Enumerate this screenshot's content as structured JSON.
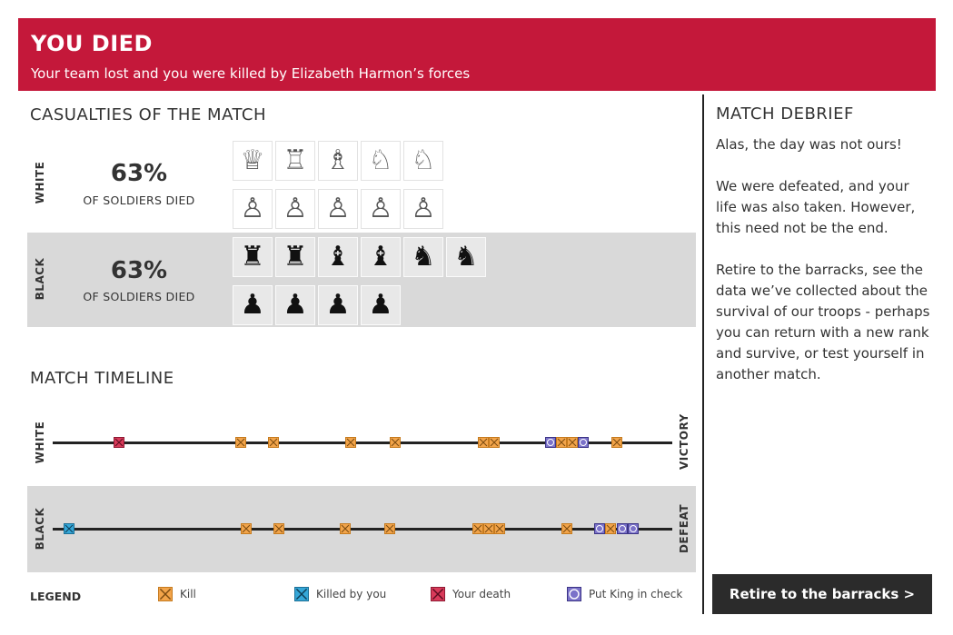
{
  "banner": {
    "title": "YOU DIED",
    "subtitle": "Your team lost and you were killed by Elizabeth Harmon’s forces",
    "color": "#c4183a"
  },
  "casualties": {
    "title": "CASUALTIES OF THE MATCH",
    "white": {
      "label": "WHITE",
      "percent": "63%",
      "percent_label": "OF SOLDIERS DIED",
      "row1": [
        "queen",
        "rook",
        "bishop",
        "knight",
        "knight"
      ],
      "row2": [
        "pawn",
        "pawn",
        "pawn",
        "pawn",
        "pawn"
      ]
    },
    "black": {
      "label": "BLACK",
      "percent": "63%",
      "percent_label": "OF SOLDIERS DIED",
      "row1": [
        "rook",
        "rook",
        "bishop",
        "bishop",
        "knight",
        "knight"
      ],
      "row2": [
        "pawn",
        "pawn",
        "pawn",
        "pawn"
      ]
    }
  },
  "timeline": {
    "title": "MATCH TIMELINE",
    "white": {
      "label": "WHITE",
      "end_label": "VICTORY",
      "events": [
        "death",
        "kill",
        "kill",
        "kill",
        "kill",
        "kill",
        "kill",
        "check",
        "kill",
        "kill",
        "check",
        "kill"
      ]
    },
    "black": {
      "label": "BLACK",
      "end_label": "DEFEAT",
      "events": [
        "killed",
        "kill",
        "kill",
        "kill",
        "kill",
        "kill",
        "kill",
        "kill",
        "kill",
        "check",
        "kill",
        "check",
        "check"
      ]
    }
  },
  "legend": {
    "title": "LEGEND",
    "kill": "Kill",
    "killed": "Killed by you",
    "death": "Your death",
    "check": "Put King in check"
  },
  "debrief": {
    "title": "MATCH DEBRIEF",
    "p1": "Alas, the day was not ours!",
    "p2": "We were defeated, and your life was also taken.  However, this need not be the end.",
    "p3": "Retire to the barracks, see the data we’ve collected about the survival of our troops - perhaps you can return with a new rank and survive, or test yourself in another match."
  },
  "button": {
    "label": "Retire to the barracks >"
  },
  "colors": {
    "kill": "#f2a44a",
    "killed_by_you": "#35a7d8",
    "your_death": "#d93a5a",
    "check": "#7b72c9"
  }
}
